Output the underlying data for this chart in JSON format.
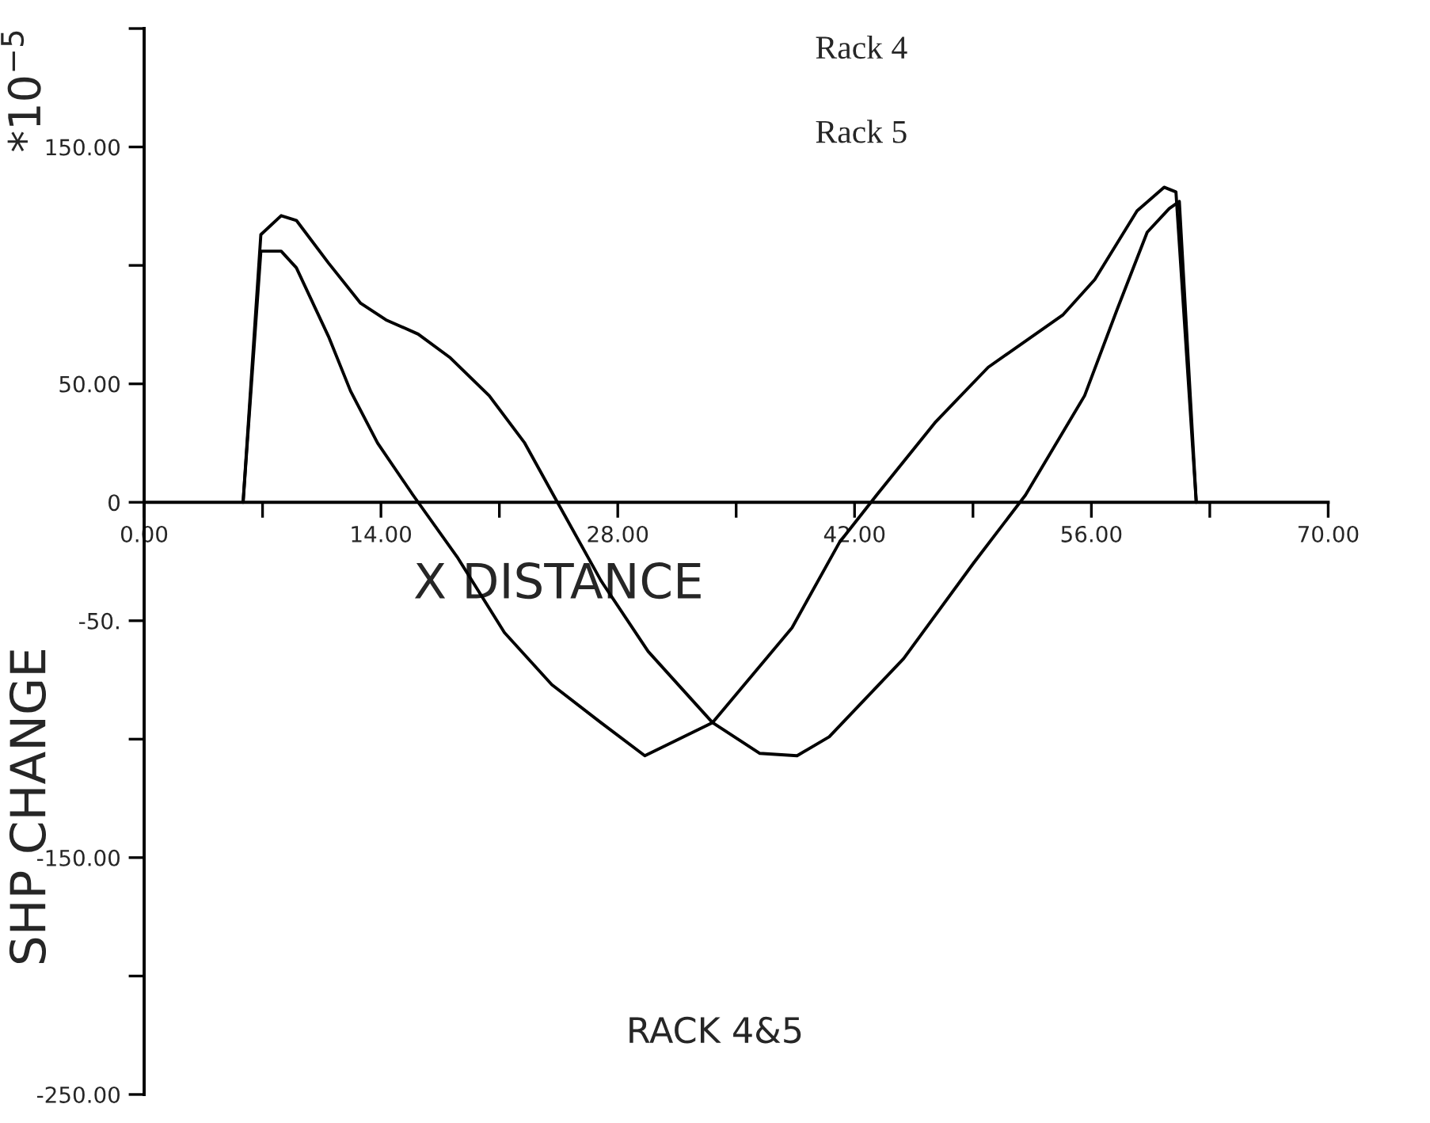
{
  "chart_data": {
    "type": "line",
    "title": "RACK 4&5",
    "xlabel": "X DISTANCE",
    "ylabel": "SHP CHANGE",
    "annotations": [
      "Rack 4",
      "Rack 5",
      "*10$^{−5}$"
    ],
    "xlim": [
      0,
      70
    ],
    "ylim": [
      -250,
      200
    ],
    "xticks": [
      {
        "value": 0,
        "label": "0.00"
      },
      {
        "value": 7,
        "label": null
      },
      {
        "value": 14,
        "label": "14.00"
      },
      {
        "value": 21,
        "label": null
      },
      {
        "value": 28,
        "label": "28.00"
      },
      {
        "value": 35,
        "label": null
      },
      {
        "value": 42,
        "label": "42.00"
      },
      {
        "value": 49,
        "label": null
      },
      {
        "value": 56,
        "label": "56.00"
      },
      {
        "value": 63,
        "label": null
      },
      {
        "value": 70,
        "label": "70.00"
      }
    ],
    "yticks": [
      {
        "value": 200,
        "label": null
      },
      {
        "value": 150,
        "label": "150.00"
      },
      {
        "value": 100,
        "label": null
      },
      {
        "value": 50,
        "label": "50.00"
      },
      {
        "value": 0,
        "label": "0"
      },
      {
        "value": -50,
        "label": "-50."
      },
      {
        "value": -100,
        "label": null
      },
      {
        "value": -150,
        "label": "-150.00"
      },
      {
        "value": -200,
        "label": null
      },
      {
        "value": -250,
        "label": "-250.00"
      }
    ],
    "series": [
      {
        "color": "#000000",
        "x": [
          5.85,
          6.9,
          8.1,
          9.0,
          10.9,
          12.8,
          14.3,
          16.2,
          18.1,
          20.4,
          22.5,
          24.2,
          27,
          29.8,
          33.6,
          36.4,
          38.6,
          40.5,
          44.9,
          49,
          52.1,
          55.6,
          57.5,
          59.3,
          60.6,
          61.2,
          62.2
        ],
        "values": [
          0,
          113,
          121,
          119,
          101,
          84,
          77,
          71,
          61,
          45,
          25,
          3,
          -33,
          -63,
          -93,
          -106,
          -107,
          -99,
          -66,
          -26,
          3,
          45,
          81,
          114,
          124,
          127,
          0
        ]
      },
      {
        "color": "#000000",
        "x": [
          5.85,
          6.9,
          8.1,
          9.0,
          10.9,
          12.2,
          13.8,
          15.9,
          18.5,
          21.3,
          24.1,
          27,
          29.6,
          33.6,
          38.3,
          41.1,
          43.3,
          46.8,
          49.9,
          54.3,
          56.2,
          58.7,
          60.3,
          61.0,
          62.2
        ],
        "values": [
          0,
          106,
          106,
          99,
          70,
          47,
          25,
          3,
          -23,
          -55,
          -77,
          -93,
          -107,
          -93,
          -53,
          -17,
          3,
          34,
          57,
          79,
          94,
          123,
          133,
          131,
          0
        ]
      }
    ]
  }
}
